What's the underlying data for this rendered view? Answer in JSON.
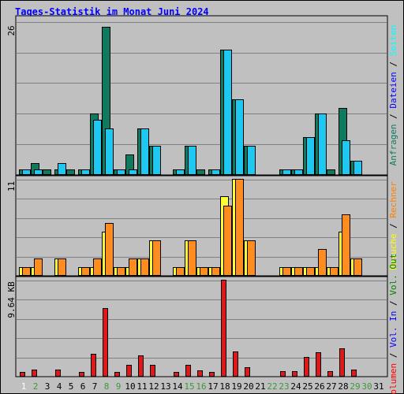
{
  "title": "Tages-Statistik im Monat Juni 2024",
  "chart_data": [
    {
      "type": "bar",
      "panel": "top",
      "scale_label": "26",
      "ylim": [
        0,
        26
      ],
      "categories": [
        1,
        2,
        3,
        4,
        5,
        6,
        7,
        8,
        9,
        10,
        11,
        12,
        13,
        14,
        15,
        16,
        17,
        18,
        19,
        20,
        21,
        22,
        23,
        24,
        25,
        26,
        27,
        28,
        29,
        30,
        31
      ],
      "series": [
        {
          "name": "Anfragen",
          "color": "#0f7a5e",
          "values": [
            1,
            2,
            1,
            1,
            1,
            1,
            10.5,
            25.5,
            1,
            3.5,
            8,
            5,
            0,
            1,
            5,
            1,
            1,
            21.5,
            13,
            5,
            0,
            0,
            1,
            1,
            6.5,
            10.5,
            1,
            11.5,
            2.5,
            0,
            0
          ]
        },
        {
          "name": "Dateien",
          "color": "#1ec8f0",
          "values": [
            1,
            1,
            0,
            2,
            0,
            1,
            9.5,
            8,
            1,
            1,
            8,
            5,
            0,
            1,
            5,
            0,
            1,
            21.5,
            13,
            5,
            0,
            0,
            1,
            1,
            6.5,
            10.5,
            0,
            6,
            2.5,
            0,
            0
          ]
        }
      ],
      "legend": [
        {
          "text": "Anfragen",
          "color": "#0f7a5e"
        },
        {
          "text": "Dateien",
          "color": "#0000ff"
        },
        {
          "text": "Seiten",
          "color": "#00ffff"
        }
      ]
    },
    {
      "type": "bar",
      "panel": "middle",
      "scale_label": "11",
      "ylim": [
        0,
        11
      ],
      "categories": [
        1,
        2,
        3,
        4,
        5,
        6,
        7,
        8,
        9,
        10,
        11,
        12,
        13,
        14,
        15,
        16,
        17,
        18,
        19,
        20,
        21,
        22,
        23,
        24,
        25,
        26,
        27,
        28,
        29,
        30,
        31
      ],
      "series": [
        {
          "name": "Besuche",
          "color": "#ffff33",
          "values": [
            1,
            1,
            0,
            2,
            0,
            1,
            1,
            5,
            1,
            1,
            2,
            4,
            0,
            1,
            4,
            1,
            1,
            9,
            11,
            4,
            0,
            0,
            1,
            1,
            1,
            1,
            1,
            5,
            2,
            0,
            0
          ]
        },
        {
          "name": "Rechner",
          "color": "#ff8c1e",
          "values": [
            1,
            2,
            0,
            2,
            0,
            1,
            2,
            6,
            1,
            2,
            2,
            4,
            0,
            1,
            4,
            1,
            1,
            8,
            11,
            4,
            0,
            0,
            1,
            1,
            1,
            3,
            1,
            7,
            2,
            0,
            0
          ]
        }
      ],
      "legend": [
        {
          "text": "Besuche",
          "color": "#ffff00"
        },
        {
          "text": "Rechner",
          "color": "#ff8000"
        }
      ]
    },
    {
      "type": "bar",
      "panel": "bottom",
      "scale_label": "9.64 KB",
      "ylim": [
        0,
        9.64
      ],
      "categories": [
        1,
        2,
        3,
        4,
        5,
        6,
        7,
        8,
        9,
        10,
        11,
        12,
        13,
        14,
        15,
        16,
        17,
        18,
        19,
        20,
        21,
        22,
        23,
        24,
        25,
        26,
        27,
        28,
        29,
        30,
        31
      ],
      "series": [
        {
          "name": "Volumen",
          "color": "#e01818",
          "values": [
            0.45,
            0.7,
            0,
            0.7,
            0,
            0.45,
            2.3,
            6.8,
            0.45,
            1.15,
            2.1,
            1.2,
            0,
            0.45,
            1.2,
            0.6,
            0.45,
            9.64,
            2.5,
            0.95,
            0,
            0,
            0.55,
            0.55,
            1.95,
            2.4,
            0.55,
            2.85,
            0.7,
            0,
            0
          ]
        }
      ],
      "legend": [
        {
          "text": "Volumen",
          "color": "#ff0000"
        },
        {
          "text": "Vol. In",
          "color": "#0000ff"
        },
        {
          "text": "Vol. Out",
          "color": "#008000"
        }
      ]
    }
  ],
  "x_labels": [
    {
      "text": "1",
      "color": "#ffffff"
    },
    {
      "text": "2",
      "color": "#3a9a3a"
    },
    {
      "text": "3",
      "color": "#000000"
    },
    {
      "text": "4",
      "color": "#000000"
    },
    {
      "text": "5",
      "color": "#000000"
    },
    {
      "text": "6",
      "color": "#000000"
    },
    {
      "text": "7",
      "color": "#000000"
    },
    {
      "text": "8",
      "color": "#3a9a3a"
    },
    {
      "text": "9",
      "color": "#3a9a3a"
    },
    {
      "text": "10",
      "color": "#000000"
    },
    {
      "text": "11",
      "color": "#000000"
    },
    {
      "text": "12",
      "color": "#000000"
    },
    {
      "text": "13",
      "color": "#000000"
    },
    {
      "text": "14",
      "color": "#000000"
    },
    {
      "text": "15",
      "color": "#3a9a3a"
    },
    {
      "text": "16",
      "color": "#3a9a3a"
    },
    {
      "text": "17",
      "color": "#000000"
    },
    {
      "text": "18",
      "color": "#000000"
    },
    {
      "text": "19",
      "color": "#000000"
    },
    {
      "text": "20",
      "color": "#000000"
    },
    {
      "text": "21",
      "color": "#000000"
    },
    {
      "text": "22",
      "color": "#3a9a3a"
    },
    {
      "text": "23",
      "color": "#3a9a3a"
    },
    {
      "text": "24",
      "color": "#000000"
    },
    {
      "text": "25",
      "color": "#000000"
    },
    {
      "text": "26",
      "color": "#000000"
    },
    {
      "text": "27",
      "color": "#000000"
    },
    {
      "text": "28",
      "color": "#000000"
    },
    {
      "text": "29",
      "color": "#3a9a3a"
    },
    {
      "text": "30",
      "color": "#3a9a3a"
    },
    {
      "text": "31",
      "color": "#000000"
    }
  ],
  "separator": " / ",
  "colors": {
    "background": "#c0c0c0",
    "grid": "#808080",
    "bar_edge": "#000000",
    "title": "#0000ff"
  }
}
